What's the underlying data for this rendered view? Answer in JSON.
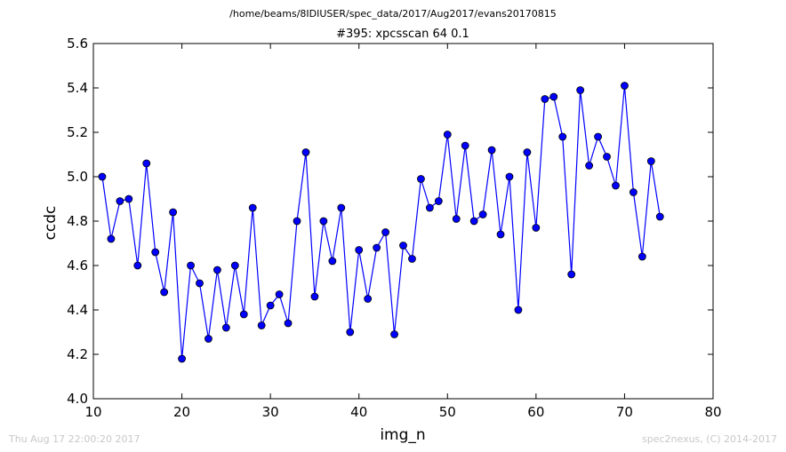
{
  "chart_data": {
    "type": "line",
    "path_title": "/home/beams/8IDIUSER/spec_data/2017/Aug2017/evans20170815",
    "title": "#395: xpcsscan 64 0.1",
    "xlabel": "img_n",
    "ylabel": "ccdc",
    "xlim": [
      10,
      80
    ],
    "ylim": [
      4.0,
      5.6
    ],
    "xticks": [
      10,
      20,
      30,
      40,
      50,
      60,
      70,
      80
    ],
    "yticks": [
      4.0,
      4.2,
      4.4,
      4.6,
      4.8,
      5.0,
      5.2,
      5.4,
      5.6
    ],
    "line_color": "#0000ff",
    "marker_color": "#0000ff",
    "x": [
      11,
      12,
      13,
      14,
      15,
      16,
      17,
      18,
      19,
      20,
      21,
      22,
      23,
      24,
      25,
      26,
      27,
      28,
      29,
      30,
      31,
      32,
      33,
      34,
      35,
      36,
      37,
      38,
      39,
      40,
      41,
      42,
      43,
      44,
      45,
      46,
      47,
      48,
      49,
      50,
      51,
      52,
      53,
      54,
      55,
      56,
      57,
      58,
      59,
      60,
      61,
      62,
      63,
      64,
      65,
      66,
      67,
      68,
      69,
      70,
      71,
      72,
      73,
      74
    ],
    "y": [
      5.0,
      4.72,
      4.89,
      4.9,
      4.6,
      5.06,
      4.66,
      4.48,
      4.84,
      4.18,
      4.6,
      4.52,
      4.27,
      4.58,
      4.32,
      4.6,
      4.38,
      4.86,
      4.33,
      4.42,
      4.47,
      4.34,
      4.8,
      5.11,
      4.46,
      4.8,
      4.62,
      4.86,
      4.3,
      4.67,
      4.45,
      4.68,
      4.75,
      4.29,
      4.69,
      4.63,
      4.99,
      4.86,
      4.89,
      5.19,
      4.81,
      5.14,
      4.8,
      4.83,
      5.12,
      4.74,
      5.0,
      4.4,
      5.11,
      4.77,
      5.35,
      5.36,
      5.18,
      4.56,
      5.39,
      5.05,
      5.18,
      5.09,
      4.96,
      5.41,
      4.93,
      4.64,
      5.07,
      4.82
    ]
  },
  "footer": {
    "left": "Thu Aug 17 22:00:20 2017",
    "right": "spec2nexus, (C) 2014-2017"
  }
}
